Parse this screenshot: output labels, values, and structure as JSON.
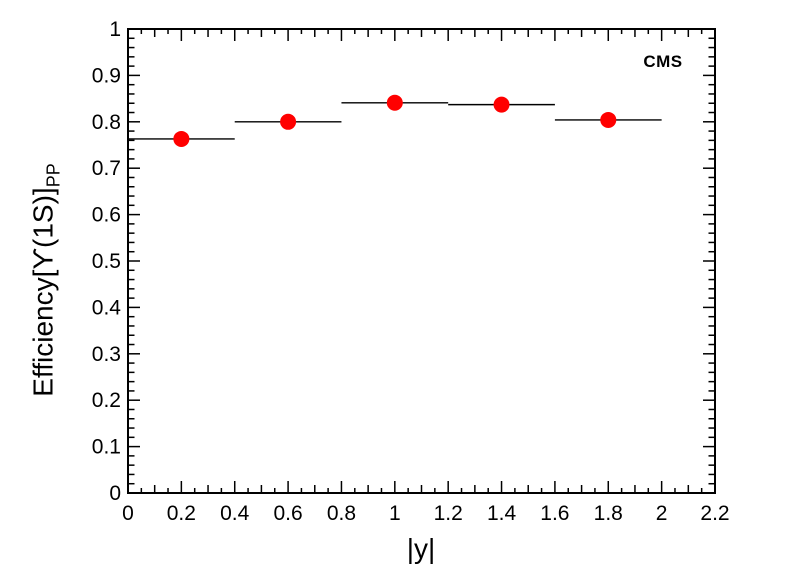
{
  "chart_data": {
    "type": "scatter",
    "title": "",
    "xlabel": "|y|",
    "ylabel_main": "Efficiency[ϒ(1S)]",
    "ylabel_sub": "PP",
    "xlim": [
      0,
      2.2
    ],
    "ylim": [
      0,
      1
    ],
    "grid": false,
    "legend": "none",
    "x_tick_step_major": 0.2,
    "x_tick_step_medium": 0.1,
    "x_tick_step_minor": 0.05,
    "y_tick_step_major": 0.1,
    "y_tick_step_minor": 0.02,
    "x_tick_labels": [
      "0",
      "0.2",
      "0.4",
      "0.6",
      "0.8",
      "1",
      "1.2",
      "1.4",
      "1.6",
      "1.8",
      "2",
      "2.2"
    ],
    "y_tick_labels": [
      "0",
      "0.1",
      "0.2",
      "0.3",
      "0.4",
      "0.5",
      "0.6",
      "0.7",
      "0.8",
      "0.9",
      "1"
    ],
    "frame_color": "#000000",
    "background": "#ffffff",
    "annotations": [
      {
        "text": "CMS",
        "x": 2.0,
        "y": 0.93,
        "bold": true
      }
    ],
    "series": [
      {
        "name": "Upsilon(1S) efficiency PP",
        "marker": "circle",
        "marker_color": "#ff0000",
        "line_color": "#000000",
        "points": [
          {
            "x": 0.2,
            "xlow": 0.0,
            "xhigh": 0.4,
            "y": 0.763
          },
          {
            "x": 0.6,
            "xlow": 0.4,
            "xhigh": 0.8,
            "y": 0.8
          },
          {
            "x": 1.0,
            "xlow": 0.8,
            "xhigh": 1.2,
            "y": 0.841
          },
          {
            "x": 1.4,
            "xlow": 1.2,
            "xhigh": 1.6,
            "y": 0.837
          },
          {
            "x": 1.8,
            "xlow": 1.6,
            "xhigh": 2.0,
            "y": 0.804
          }
        ]
      }
    ]
  }
}
